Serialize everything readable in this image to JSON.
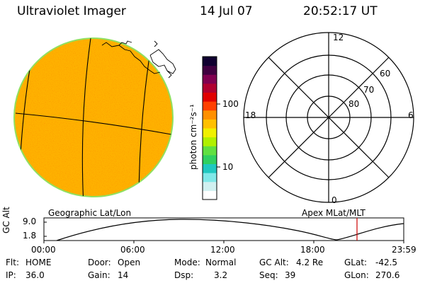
{
  "header": {
    "instrument": "Ultraviolet Imager",
    "date": "14 Jul 07",
    "time": "20:52:17 UT"
  },
  "colorbar": {
    "unit_label": "photon cm⁻²s⁻¹",
    "ticks": [
      {
        "label": "100",
        "value": 100
      },
      {
        "label": "10",
        "value": 10
      }
    ],
    "colors": [
      "#ffffff",
      "#d0f0f0",
      "#80e8e8",
      "#20c8c0",
      "#30d060",
      "#60e040",
      "#b0f000",
      "#f0f000",
      "#ffc000",
      "#ff9000",
      "#ff4000",
      "#e00000",
      "#b00030",
      "#800050",
      "#400040",
      "#100030"
    ]
  },
  "globe": {
    "projection_label": "Geographic Lat/Lon",
    "fill_color": "#ffb000"
  },
  "polar": {
    "label": "Apex MLat/MLT",
    "mlt_labels": {
      "top": "12",
      "left": "18",
      "right": "6",
      "bottom": "0"
    },
    "mlat_labels": [
      "60",
      "70",
      "80"
    ]
  },
  "altitude_plot": {
    "ylabel": "GC Alt",
    "ymax_label": "9.0",
    "ymin_label": "1.8",
    "xticks": [
      "00:00",
      "06:00",
      "12:00",
      "18:00",
      "23:59"
    ],
    "marker_color": "#cc0000"
  },
  "status": {
    "flt_label": "Flt:",
    "flt_value": "HOME",
    "ip_label": "IP:",
    "ip_value": "36.0",
    "door_label": "Door:",
    "door_value": "Open",
    "gain_label": "Gain:",
    "gain_value": "14",
    "mode_label": "Mode:",
    "mode_value": "Normal",
    "dsp_label": "Dsp:",
    "dsp_value": "3.2",
    "gcalt_label": "GC Alt:",
    "gcalt_value": "4.2 Re",
    "seq_label": "Seq:",
    "seq_value": "39",
    "glat_label": "GLat:",
    "glat_value": "-42.5",
    "glon_label": "GLon:",
    "glon_value": "270.6"
  }
}
